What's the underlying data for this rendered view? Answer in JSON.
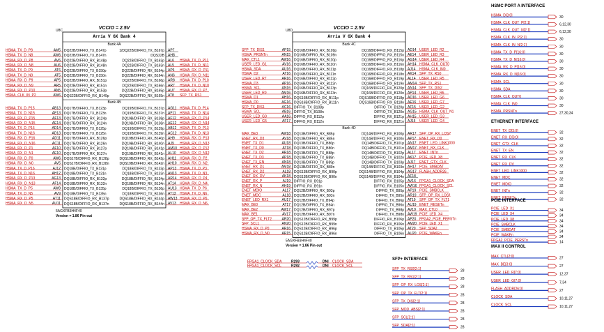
{
  "chips": [
    {
      "ref": "U8C",
      "vccio": "VCCIO = 2.5V",
      "title": "Arria V GX Bank 4",
      "part": "5AGXFB3H4F40",
      "version": "Version = 1.86 Pin-out",
      "banks": [
        {
          "name": "Bank 4A",
          "rows": [
            [
              "HSMA_TX_D_P8",
              "AM5",
              "DQ22B/DIFFIO_TX_B147p",
              "1/DQ22B/DIFFIO_TX_B167p",
              "AP7",
              null
            ],
            [
              "HSMA_TX_D_N8",
              "AW6",
              "DQ22B/DIFFIO_TX_B147n",
              "DQS22B",
              "AH8",
              null
            ],
            [
              "HSMA_RX_D_P8",
              "AV6",
              "DQ22B/DIFFIO_RX_B148p",
              "DQ22B/DIFFIO_TX_B163p",
              "AL6",
              "HSMA_TX_D_P11"
            ],
            [
              "HSMA_RX_D_N8",
              "AU6",
              "DQ22B/DIFFIO_RX_B148n",
              "DQ22B/DIFFIO_TX_B163n",
              "AL5",
              "HSMA_TX_D_N11"
            ],
            [
              "HSMA_TX_D_P9",
              "AT6",
              "DQ22B/DIFFIO_TX_B150p",
              "DQ22B/DIFFIO_RX_B164p",
              "AP6",
              "HSMA_RX_D_P11"
            ],
            [
              "HSMA_TX_D_N9",
              "AT5",
              "DQ22B/DIFFIO_TX_B150n",
              "DQ22B/DIFFIO_RX_B164n",
              "AN6",
              "HSMA_RX_D_N11"
            ],
            [
              "HSMA_RX_D_P9",
              "AP5",
              "DQ22B/DIFFIO_RX_B151p",
              "DQ22B/DIFFIO_TX_B166p",
              "AR8",
              "HSMA_TX_D_P10"
            ],
            [
              "HSMA_RX_D_N9",
              "AR5",
              "DQ22B/DIFFIO_RX_B151n",
              "DQ22B/DIFFIO_TX_B166n",
              "AR7",
              "HSMA_TX_D_N10"
            ],
            [
              "HSMA_RX_D_P10",
              "AN5",
              "DQ22B/DIFFIO_RX_B153p",
              "DQ22B/DIFFIO_RX_B165p",
              "AU7",
              "HSMA_RX_D_P7"
            ],
            [
              "HSMA_CLK_IN_P2",
              "AW6",
              "DQS22B/DIFFIO_RX_B149p",
              "DQS22B/DIFFIO_RX_B165n",
              "AT8",
              "SFP_TX_RS1"
            ]
          ]
        },
        {
          "name": "Bank 4B",
          "rows": [
            [
              "HSMA_TX_D_P15",
              "AB13",
              "DQ17B/DIFFIO_TX_B123p",
              "DQ19B/DIFFIO_TX_B137p",
              "AG11",
              "HSMA_TX_D_P14"
            ],
            [
              "HSMA_TX_D_N15",
              "AE13",
              "DQ17B/DIFFIO_TX_B123n",
              "DQ19B/DIFFIO_TX_B137n",
              "AF11",
              "HSMA_TX_D_N14"
            ],
            [
              "HSMA_RX_D_P15",
              "AF13",
              "DQ17B/DIFFIO_RX_B124p",
              "DQ19B/DIFFIO_RX_B138p",
              "AF12",
              "HSMA_RX_D_P14"
            ],
            [
              "HSMA_RX_D_N15",
              "AE14",
              "DQ17B/DIFFIO_RX_B124n",
              "DQ19B/DIFFIO_RX_B138n",
              "AE12",
              "HSMA_RX_D_N14"
            ],
            [
              "HSMA_TX_D_P16",
              "AD14",
              "DQ17B/DIFFIO_TX_B125p",
              "DQ19B/DIFFIO_TX_B139p",
              "AB12",
              "HSMA_TX_D_P13"
            ],
            [
              "HSMA_TX_D_N16",
              "AD13",
              "DQ17B/DIFFIO_TX_B125n",
              "DQ19B/DIFFIO_TX_B139n",
              "AC12",
              "HSMA_TX_D_N13"
            ],
            [
              "HSMA_RX_D_P16",
              "AD11",
              "DQ17B/DIFFIO_RX_B126p",
              "DQ19B/DIFFIO_RX_B140p",
              "AH9",
              "HSMA_RX_D_P13"
            ],
            [
              "HSMA_RX_D_N16",
              "AC11",
              "DQ17B/DIFFIO_RX_B126n",
              "DQ19B/DIFFIO_RX_B140n",
              "AJ9",
              "HSMA_RX_D_N13"
            ],
            [
              "HSMA_RX_D_P1",
              "AF10",
              "DQ17B/DIFFIO_RX_B127p",
              "DQ19B/DIFFIO_RX_B141p",
              "AM10",
              "HSMA_RX_D_P12"
            ],
            [
              "HSMA_RX_D_N1",
              "AE10",
              "DQ17B/DIFFIO_RX_B127n",
              "DQ19B/DIFFIO_RX_B141n",
              "AL10",
              "HSMA_RX_D_N12"
            ],
            [
              "HSMA_RX_D_P0",
              "AW6",
              "DQS17B/DIFFIO_RX_B128p",
              "DQS19B/DIFFIO_RX_B142p",
              "AH11",
              "HSMA_RX_D_P2"
            ],
            [
              "HSMA_RX_D_N0",
              "AV5",
              "DQS17B/DIFFIO_RX_B128n",
              "DQS19B/DIFFIO_RX_B142n",
              "AH10",
              "HSMA_RX_D_N2"
            ],
            [
              "HSMA_TX_D_P16",
              "AJ12",
              "DQ18B/DIFFIO_TX_B131p",
              "DQ18B/DIFFIO_TX_B133p",
              "AP13",
              "HSMA_TX_D_P3"
            ],
            [
              "HSMA_TX_D_N16",
              "AH12",
              "DQ18B/DIFFIO_TX_B131n",
              "DQ18B/DIFFIO_TX_B133n",
              "AN13",
              "HSMA_TX_D_N3"
            ],
            [
              "HSMA_RX_D_P13",
              "AG13",
              "DQ18B/DIFFIO_RX_B132p",
              "DQ18B/DIFFIO_RX_B134p",
              "AR14",
              "HSMA_RX_D_P4"
            ],
            [
              "HSMA_RX_D_N13",
              "AF14",
              "DQ18B/DIFFIO_RX_B132n",
              "DQ18B/DIFFIO_RX_B134n",
              "AT14",
              "HSMA_RX_D_N4"
            ],
            [
              "HSMA_TX_D_P5",
              "AW9",
              "DQ18B/DIFFIO_TX_B135p",
              "DQ18B/DIFFIO_TX_B136p",
              "AU13",
              "HSMA_TX_D_P6"
            ],
            [
              "HSMA_TX_D_N5",
              "AV9",
              "DQ18B/DIFFIO_TX_B135n",
              "DQ18B/DIFFIO_TX_B136n",
              "AT13",
              "HSMA_TX_D_N6"
            ],
            [
              "HSMA_RX_D_P5",
              "AT11",
              "DQS18B/DIFFIO_RX_B137p",
              "DQS18B/DIFFIO_RX_B144p",
              "AW13",
              "HSMA_RX_D_P6"
            ],
            [
              "HSMA_RX_D_N5",
              "AU11",
              "DQS18B/DIFFIO_RX_B137n",
              "DQS18B/DIFFIO_RX_B144n",
              "AV13",
              "HSMA_RX_D_N6"
            ]
          ]
        }
      ]
    },
    {
      "ref": "U8D",
      "vccio": "VCCIO = 2.5V",
      "title": "Arria V GX Bank 4",
      "part": "5AGXFB3H4F40",
      "version": "Version = 1.86 Pin-out",
      "banks": [
        {
          "name": "Bank 4C",
          "rows": [
            [
              "SFP_TX_DIS1",
              "AP15",
              "DQ16B/DIFFIO_RX_B109p",
              "DQ16B/DIFFIO_RX_B115p",
              "AD14",
              "USER_LED_R2"
            ],
            [
              "HSMA_PRSNTn",
              "AN15",
              "DQ16B/DIFFIO_RX_B109n",
              "DQ16B/DIFFIO_RX_B115n",
              "AE14",
              "USER_LED_R3"
            ],
            [
              "MAX_CTL1",
              "AW16",
              "DQ16B/DIFFIO_RX_B110p",
              "DQ16B/DIFFIO_RX_B116p",
              "AG14",
              "USER_LED_R4"
            ],
            [
              "USER_LED_G1",
              "AV16",
              "DQ16B/DIFFIO_RX_B110n",
              "DQ16B/DIFFIO_RX_B116n",
              "AH14",
              "HSMA_CLK_OUT0"
            ],
            [
              "HSMA_SDA",
              "AU16",
              "DQ16B/DIFFIO_RX_B111p",
              "DQ16B/DIFFIO_RX_B118p",
              "AJ14",
              "HSMA_CLK_IN0"
            ],
            [
              "HSMA_D2",
              "AT16",
              "DQ16B/DIFFIO_RX_B111n",
              "DQ16B/DIFFIO_RX_B118n",
              "AK14",
              "SFP_TX_RS0"
            ],
            [
              "USER_LED_R7",
              "AR16",
              "DQ16B/DIFFIO_RX_B112p",
              "DQ16B/DIFFIO_RX_B119p",
              "AL14",
              "USER_LED_R5"
            ],
            [
              "HSMA_D3",
              "AP16",
              "DQ16B/DIFFIO_RX_B112n",
              "DQ16B/DIFFIO_RX_B119n",
              "AM14",
              "SFP_TX_RS1"
            ],
            [
              "HSMA_SCL",
              "AN16",
              "DQ16B/DIFFIO_RX_B113p",
              "DQ16B/DIFFIO_RX_B120p",
              "AN14",
              "SFP_TX_DIS2"
            ],
            [
              "USER_LED_R0",
              "AM16",
              "DQ16B/DIFFIO_RX_B113n",
              "DQ16B/DIFFIO_RX_B120n",
              "AP14",
              "USER_LED_R6"
            ],
            [
              "HSMA_D1",
              "AH16",
              "DQS16B/DIFFIO_RX_B111p",
              "DQS16B/DIFFIO_RX_B118p",
              "AD16",
              "USER_LED_G6"
            ],
            [
              "HSMA_D0",
              "AG16",
              "DQS16B/DIFFIO_RX_B111n",
              "DQS16B/DIFFIO_RX_B118n",
              "AE16",
              "USER_LED_G7"
            ],
            [
              "SFP_TX_DIS1",
              "AC16",
              "DIFFIO_TX_B108p",
              "DIFFIO_TX_B120p",
              "AF15",
              "USER_LED_G2"
            ],
            [
              "HSMA_SCL",
              "AB16",
              "DIFFIO_TX_B108n",
              "DIFFIO_TX_B120n",
              "AG15",
              "HSMA_CLK_OUT_N1"
            ],
            [
              "USER_LED_G0",
              "AA16",
              "DIFFIO_RX_B112p",
              "DIFFIO_RX_B121p",
              "AH15",
              "USER_LED_G3"
            ],
            [
              "USER_LED_G5",
              "AF17",
              "DIFFIO_RX_B112n",
              "DIFFIO_RX_B121n",
              "AJ15",
              "USER_LED_G4"
            ]
          ]
        },
        {
          "name": "Bank 4D",
          "rows": [
            [
              "MAX_BE3",
              "AW18",
              "DQ13B/DIFFIO_RX_B85p",
              "DQ14B/DIFFIO_RX_B100p",
              "AR17",
              "SFP_OP_RX_LOS2"
            ],
            [
              "ENET_RX_D3",
              "AV18",
              "DQ13B/DIFFIO_RX_B85n",
              "DQ14B/DIFFIO_RX_B100n",
              "AP17",
              "ENET_RX_D0"
            ],
            [
              "ENET_TX_D1",
              "AU18",
              "DQ13B/DIFFIO_TX_B86p",
              "DQ14B/DIFFIO_TX_B101p",
              "AN17",
              "ENET_LED_LINK1000"
            ],
            [
              "ENET_TX_D0",
              "AT18",
              "DQ13B/DIFFIO_TX_B86n",
              "DQ14B/DIFFIO_TX_B101n",
              "AM17",
              "ENET_RX_CLK"
            ],
            [
              "ENET_TX_D2",
              "AR18",
              "DQ13B/DIFFIO_TX_B88p",
              "DQ14B/DIFFIO_TX_B102p",
              "AL17",
              "ENET_INTn"
            ],
            [
              "ENET_TX_D3",
              "AP18",
              "DQ13B/DIFFIO_TX_B88n",
              "DQ14B/DIFFIO_TX_B102n",
              "AK17",
              "PCIE_LED_X8"
            ],
            [
              "ENET_TX_EN",
              "AN18",
              "DQ13B/DIFFIO_TX_B89p",
              "DQ14B/DIFFIO_TX_B103p",
              "AJ17",
              "ENET_GTX_CLK"
            ],
            [
              "ENET_RX_D1",
              "AM18",
              "DQ13B/DIFFIO_RX_B89n",
              "DQ14B/DIFFIO_RX_B103n",
              "AH17",
              "PCIE_SMBDAT"
            ],
            [
              "ENET_RX_D2",
              "AL18",
              "DQS13B/DIFFIO_RX_B90p",
              "DQS14B/DIFFIO_RX_B104p",
              "AG17",
              "FLASH_ADDR26"
            ],
            [
              "ENET_RX_DV",
              "AK18",
              "DQS13B/DIFFIO_RX_B90n",
              "DQS14B/DIFFIO_RX_B104n",
              "AF18",
              null
            ],
            [
              "ENET_RX_P",
              "AJ19",
              "DIFFIO_RX_B91p",
              "DIFFIO_RX_B105p",
              "AV16",
              "FPGA1_CLOCK_SDA"
            ],
            [
              "ENET_RX_N",
              "AH19",
              "DIFFIO_RX_B91n",
              "DIFFIO_RX_B105n",
              "AW16",
              "FPGA1_CLOCK_SCL"
            ],
            [
              "ENET_MDIO",
              "AL17",
              "DQ12B/DIFFIO_RX_B93p",
              "DIFFIO_TX_B95p",
              "AP19",
              "PCIE_SMBCLK"
            ],
            [
              "ENET_MDC",
              "AL18",
              "DQ12B/DIFFIO_RX_B93n",
              "DIFFIO_TX_B95n",
              "AR19",
              "SFP_OP_RX_LOS1"
            ],
            [
              "ENET_LED_RX1",
              "AU17",
              "DQ12B/DIFFIO_TX_B94p",
              "DIFFIO_TX_B96p",
              "AT19",
              "SFP_OP_TX_FLT1"
            ],
            [
              "MAX_BE0",
              "AT17",
              "DQ12B/DIFFIO_TX_B94n",
              "DIFFIO_TX_B96n",
              "AU19",
              "ENET_RESETn"
            ],
            [
              "MAX_BE2",
              "AW17",
              "DQ12B/DIFFIO_RX_B97p",
              "DIFFIO_TX_B98p",
              "AV19",
              "MAX_CTL0"
            ],
            [
              "MAX_BE1",
              "AV17",
              "DQ12B/DIFFIO_RX_B97n",
              "DIFFIO_TX_B98n",
              "AW19",
              "PCIE_LED_X4"
            ],
            [
              "SFP_OP_TX_FLT2",
              "AR20",
              "DQS12B/DIFFIO_RX_B99p",
              "DIFFIO_RX_B106p",
              "AP20",
              "FPGA2_PCIE_PERSTn"
            ],
            [
              "SFP_SCL1",
              "AN20",
              "DQS12B/DIFFIO_RX_B99n",
              "DIFFIO_RX_B106n",
              "AM20",
              "PCIE_LED_X1"
            ],
            [
              "HSMA_RX_D_P0",
              "AR16",
              "DQS12B/DIFFIO_RX_B96p",
              "DIFFIO_TX_B105p",
              "AT20",
              "SFP_SDA2"
            ],
            [
              "HSMA_RX_D_N0",
              "AR15",
              "DQS12B/DIFFIO_RX_B96n",
              "DIFFIO_TX_B106n",
              "AU20",
              "PCIE_WAKEn"
            ]
          ]
        }
      ]
    }
  ],
  "interfaces": [
    {
      "title": "HSMC PORT A INTERFACE",
      "items": [
        [
          "HSMA_D[3:0]",
          "30"
        ],
        [
          "HSMA_CLK_OUT_P[2:1]",
          "6,12,30"
        ],
        [
          "HSMA_CLK_OUT_N[2:1]",
          "6,12,30"
        ],
        [
          "HSMA_CLK_IN_P[2:1]",
          "30"
        ],
        [
          "HSMA_CLK_IN_N[2:1]",
          "30"
        ],
        [
          "HSMA_TX_D_P[16:0]",
          "30"
        ],
        [
          "HSMA_TX_D_N[16:0]",
          "30"
        ],
        [
          "HSMA_RX_D_P[16:0]",
          "30"
        ],
        [
          "HSMA_RX_D_N[16:0]",
          "30"
        ],
        [
          "HSMA_SCL",
          "30"
        ],
        [
          "HSMA_SDA",
          "30"
        ],
        [
          "HSMA_CLK_OUT0",
          "30"
        ],
        [
          "HSMA_CLK_IN0",
          "30"
        ],
        [
          "HSMA_PRSNTn",
          "27,30,34"
        ]
      ]
    },
    {
      "title": "ETHERNET INTERFACE",
      "items": [
        [
          "ENET_TX_D[3:0]",
          "32"
        ],
        [
          "ENET_RX_D[3:0]",
          "32"
        ],
        [
          "ENET_GTX_CLK",
          "32"
        ],
        [
          "ENET_TX_EN",
          "32"
        ],
        [
          "ENET_RX_CLK",
          "32"
        ],
        [
          "ENET_RX_DV",
          "32"
        ],
        [
          "ENET_LED_LINK1000",
          "32"
        ],
        [
          "ENET_MDC",
          "32"
        ],
        [
          "ENET_MDIO",
          "32"
        ],
        [
          "ENET_INTn",
          "32"
        ],
        [
          "ENET_RESETn",
          "32"
        ]
      ]
    },
    {
      "title": "PCIE INTERFACE",
      "items": [
        [
          "PCIE_LED_X1",
          "34"
        ],
        [
          "PCIE_LED_X4",
          "34"
        ],
        [
          "PCIE_LED_X8",
          "34"
        ],
        [
          "PCIE_SMBCLK",
          "34"
        ],
        [
          "PCIE_SMBDAT",
          "34"
        ],
        [
          "PCIE_WAKEn",
          "34"
        ],
        [
          "FPGA2_PCIE_PERSTn",
          "14"
        ]
      ]
    },
    {
      "title": "MAX II CONTROL",
      "items": [
        [
          "MAX_CTL[2:0]",
          "27"
        ],
        [
          "MAX_BE[3:0]",
          "27"
        ],
        [
          "USER_LED_R[7:0]",
          "12,37"
        ],
        [
          "USER_LED_G[7:0]",
          "7,34"
        ],
        [
          "FLASH_ADDR[26:0]",
          "27"
        ],
        [
          "CLOCK_SDA",
          "10,11,27"
        ],
        [
          "CLOCK_SCL",
          "10,11,27"
        ]
      ]
    },
    {
      "title": "SFP+ INTERFACE",
      "items": [
        [
          "SFP_TX_RS0[2:1]",
          "28"
        ],
        [
          "SFP_TX_RS1[2:1]",
          "28"
        ],
        [
          "SFP_OP_RX_LOS[2:1]",
          "28"
        ],
        [
          "SFP_OP_TX_FLT[2:1]",
          "28"
        ],
        [
          "SFP_TX_DIS[2:1]",
          "28"
        ],
        [
          "SFP_MOD_ABS[2:1]",
          "28"
        ],
        [
          "SFP_SCL[2:1]",
          "28"
        ],
        [
          "SFP_SDA[2:1]",
          "28"
        ]
      ]
    }
  ],
  "resistors": [
    {
      "from": "FPGA1_CLOCK_SDA",
      "ref": "R293",
      "value": "DNI",
      "to": "CLOCK_SDA"
    },
    {
      "from": "FPGA1_CLOCK_SCL",
      "ref": "R292",
      "value": "DNI",
      "to": "CLOCK_SCL"
    }
  ]
}
